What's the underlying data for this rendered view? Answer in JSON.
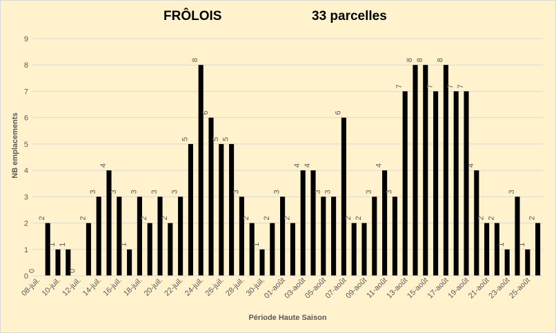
{
  "colors": {
    "background": "#fff2cc",
    "bar": "#000000",
    "grid": "#d9d9d9",
    "axis_text": "#595959"
  },
  "chart_data": {
    "type": "bar",
    "title": "FRÔLOIS",
    "subtitle": "33 parcelles",
    "xlabel": "Période Haute Saison",
    "ylabel": "NB emplacements",
    "ylim": [
      0,
      9
    ],
    "yticks": [
      0,
      1,
      2,
      3,
      4,
      5,
      6,
      7,
      8,
      9
    ],
    "grid": true,
    "legend": "none",
    "data_labels": true,
    "categories": [
      "08-juil.",
      "09-juil.",
      "10-juil.",
      "11-juil.",
      "12-juil.",
      "13-juil.",
      "14-juil.",
      "15-juil.",
      "16-juil.",
      "17-juil.",
      "18-juil.",
      "19-juil.",
      "20-juil.",
      "21-juil.",
      "22-juil.",
      "23-juil.",
      "24-juil.",
      "25-juil.",
      "26-juil.",
      "27-juil.",
      "28-juil.",
      "29-juil.",
      "30-juil.",
      "31-juil.",
      "01-août",
      "02-août",
      "03-août",
      "04-août",
      "05-août",
      "06-août",
      "07-août",
      "08-août",
      "09-août",
      "10-août",
      "11-août",
      "12-août",
      "13-août",
      "14-août",
      "15-août",
      "16-août",
      "17-août",
      "18-août",
      "19-août",
      "20-août",
      "21-août",
      "22-août",
      "23-août",
      "24-août",
      "25-août",
      "26-août"
    ],
    "shown_tick_labels": [
      "08-juil.",
      "10-juil.",
      "12-juil.",
      "14-juil.",
      "16-juil.",
      "18-juil.",
      "20-juil.",
      "22-juil.",
      "24-juil.",
      "26-juil.",
      "28-juil.",
      "30-juil.",
      "01-août",
      "03-août",
      "05-août",
      "07-août",
      "09-août",
      "11-août",
      "13-août",
      "15-août",
      "17-août",
      "19-août",
      "21-août",
      "23-août",
      "25-août"
    ],
    "values": [
      0,
      2,
      1,
      1,
      0,
      2,
      3,
      4,
      3,
      1,
      3,
      2,
      3,
      2,
      3,
      5,
      8,
      6,
      5,
      5,
      3,
      2,
      1,
      2,
      3,
      2,
      4,
      4,
      3,
      3,
      6,
      2,
      2,
      3,
      4,
      3,
      7,
      8,
      8,
      7,
      8,
      7,
      7,
      4,
      2,
      2,
      1,
      3,
      1,
      2
    ]
  }
}
